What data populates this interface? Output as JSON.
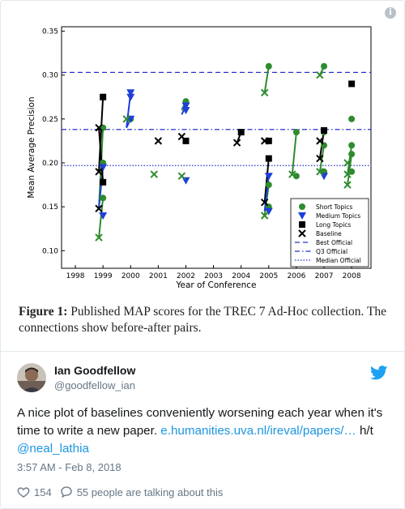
{
  "figure": {
    "caption_label": "Figure 1:",
    "caption_text": " Published MAP scores for the TREC 7 Ad-Hoc collection. The connections show before-after pairs."
  },
  "chart_data": {
    "type": "scatter",
    "xlabel": "Year of Conference",
    "ylabel": "Mean Average Precision",
    "xlim": [
      1997.5,
      2008.7
    ],
    "ylim": [
      0.08,
      0.355
    ],
    "x_ticks": [
      "1998",
      "1999",
      "2000",
      "2001",
      "2002",
      "2003",
      "2004",
      "2005",
      "2006",
      "2007",
      "2008"
    ],
    "y_ticks": [
      "0.10",
      "0.15",
      "0.20",
      "0.25",
      "0.30",
      "0.35"
    ],
    "reference_lines": [
      {
        "name": "Best Official",
        "value": 0.303,
        "style": "dashed"
      },
      {
        "name": "Q3 Official",
        "value": 0.238,
        "style": "dashdot"
      },
      {
        "name": "Median Official",
        "value": 0.197,
        "style": "dotted"
      }
    ],
    "series": [
      {
        "name": "Short Topics",
        "color": "#2e8b2e",
        "marker": "circle",
        "points": [
          [
            1999,
            0.16
          ],
          [
            1999,
            0.2
          ],
          [
            1999,
            0.24
          ],
          [
            2000,
            0.25
          ],
          [
            2002,
            0.27
          ],
          [
            2005,
            0.15
          ],
          [
            2005,
            0.175
          ],
          [
            2005,
            0.31
          ],
          [
            2006,
            0.185
          ],
          [
            2006,
            0.235
          ],
          [
            2007,
            0.31
          ],
          [
            2007,
            0.235
          ],
          [
            2007,
            0.22
          ],
          [
            2007,
            0.19
          ],
          [
            2008,
            0.25
          ],
          [
            2008,
            0.22
          ],
          [
            2008,
            0.21
          ],
          [
            2008,
            0.19
          ]
        ]
      },
      {
        "name": "Medium Topics",
        "color": "#1f3fd8",
        "marker": "triangle-down",
        "points": [
          [
            1999,
            0.14
          ],
          [
            1999,
            0.195
          ],
          [
            2000,
            0.275
          ],
          [
            2000,
            0.28
          ],
          [
            2000,
            0.25
          ],
          [
            2002,
            0.26
          ],
          [
            2002,
            0.265
          ],
          [
            2002,
            0.18
          ],
          [
            2005,
            0.145
          ],
          [
            2005,
            0.185
          ],
          [
            2007,
            0.185
          ]
        ]
      },
      {
        "name": "Long Topics",
        "color": "#000000",
        "marker": "square",
        "points": [
          [
            1999,
            0.275
          ],
          [
            1999,
            0.178
          ],
          [
            2002,
            0.225
          ],
          [
            2004,
            0.235
          ],
          [
            2005,
            0.225
          ],
          [
            2005,
            0.205
          ],
          [
            2007,
            0.237
          ],
          [
            2008,
            0.29
          ]
        ]
      },
      {
        "name": "Baseline",
        "color": "#000000",
        "marker": "x",
        "points": [
          [
            1998.85,
            0.24
          ],
          [
            1998.85,
            0.19
          ],
          [
            1998.85,
            0.148
          ],
          [
            2001,
            0.225
          ],
          [
            2001.85,
            0.23
          ],
          [
            2003.85,
            0.223
          ],
          [
            2004.85,
            0.225
          ],
          [
            2004.85,
            0.155
          ],
          [
            2006.85,
            0.225
          ],
          [
            2006.85,
            0.205
          ]
        ]
      },
      {
        "name": "Green crosses",
        "color": "#2e8b2e",
        "marker": "x",
        "points": [
          [
            1998.85,
            0.115
          ],
          [
            1999.85,
            0.25
          ],
          [
            2000.85,
            0.187
          ],
          [
            2001.85,
            0.185
          ],
          [
            2004.85,
            0.28
          ],
          [
            2004.85,
            0.14
          ],
          [
            2005.85,
            0.187
          ],
          [
            2006.85,
            0.3
          ],
          [
            2006.85,
            0.19
          ],
          [
            2007.85,
            0.2
          ],
          [
            2007.85,
            0.187
          ],
          [
            2007.85,
            0.175
          ]
        ]
      }
    ],
    "connections": [
      {
        "from": [
          1998.85,
          0.115
        ],
        "to": [
          1999,
          0.16
        ],
        "color": "#2e8b2e"
      },
      {
        "from": [
          1998.85,
          0.148
        ],
        "to": [
          1999,
          0.24
        ],
        "color": "#2e8b2e"
      },
      {
        "from": [
          1998.85,
          0.19
        ],
        "to": [
          1999,
          0.275
        ],
        "color": "#000000"
      },
      {
        "from": [
          1998.85,
          0.148
        ],
        "to": [
          1999,
          0.195
        ],
        "color": "#1f3fd8"
      },
      {
        "from": [
          1998.85,
          0.24
        ],
        "to": [
          1999,
          0.178
        ],
        "color": "#000000"
      },
      {
        "from": [
          1999.85,
          0.24
        ],
        "to": [
          2000,
          0.28
        ],
        "color": "#1f3fd8"
      },
      {
        "from": [
          1999.85,
          0.24
        ],
        "to": [
          2000,
          0.25
        ],
        "color": "#1f3fd8"
      },
      {
        "from": [
          1999.85,
          0.25
        ],
        "to": [
          2000,
          0.25
        ],
        "color": "#2e8b2e"
      },
      {
        "from": [
          2001.85,
          0.255
        ],
        "to": [
          2002,
          0.265
        ],
        "color": "#1f3fd8"
      },
      {
        "from": [
          2001.85,
          0.26
        ],
        "to": [
          2002,
          0.27
        ],
        "color": "#2e8b2e"
      },
      {
        "from": [
          2001.85,
          0.185
        ],
        "to": [
          2002,
          0.18
        ],
        "color": "#1f3fd8"
      },
      {
        "from": [
          2001.85,
          0.23
        ],
        "to": [
          2002,
          0.225
        ],
        "color": "#000000"
      },
      {
        "from": [
          2003.85,
          0.223
        ],
        "to": [
          2004,
          0.235
        ],
        "color": "#000000"
      },
      {
        "from": [
          2004.85,
          0.28
        ],
        "to": [
          2005,
          0.31
        ],
        "color": "#2e8b2e"
      },
      {
        "from": [
          2004.85,
          0.14
        ],
        "to": [
          2005,
          0.175
        ],
        "color": "#2e8b2e"
      },
      {
        "from": [
          2004.85,
          0.155
        ],
        "to": [
          2005,
          0.205
        ],
        "color": "#000000"
      },
      {
        "from": [
          2004.85,
          0.145
        ],
        "to": [
          2005,
          0.185
        ],
        "color": "#1f3fd8"
      },
      {
        "from": [
          2005.85,
          0.187
        ],
        "to": [
          2006,
          0.235
        ],
        "color": "#2e8b2e"
      },
      {
        "from": [
          2006.85,
          0.3
        ],
        "to": [
          2007,
          0.31
        ],
        "color": "#2e8b2e"
      },
      {
        "from": [
          2006.85,
          0.205
        ],
        "to": [
          2007,
          0.237
        ],
        "color": "#000000"
      },
      {
        "from": [
          2006.85,
          0.19
        ],
        "to": [
          2007,
          0.22
        ],
        "color": "#2e8b2e"
      },
      {
        "from": [
          2007.85,
          0.175
        ],
        "to": [
          2008,
          0.21
        ],
        "color": "#2e8b2e"
      },
      {
        "from": [
          2007.85,
          0.187
        ],
        "to": [
          2008,
          0.22
        ],
        "color": "#2e8b2e"
      }
    ],
    "legend": {
      "placement": "bottom-right",
      "entries": [
        "Short Topics",
        "Medium Topics",
        "Long Topics",
        "Baseline",
        "Best Official",
        "Q3 Official",
        "Median Official"
      ]
    }
  },
  "tweet": {
    "author_name": "Ian Goodfellow",
    "handle": "@goodfellow_ian",
    "text_before_link": "A nice plot of baselines conveniently worsening each year when it's time to write a new paper. ",
    "link_text": "e.humanities.uva.nl/ireval/papers/…",
    "text_mid": " h/t ",
    "mention": "@neal_lathia",
    "timestamp": "3:57 AM - Feb 8, 2018",
    "like_count": "154",
    "reply_text": "55 people are talking about this"
  },
  "colors": {
    "accent": "#1b95e0",
    "muted": "#657786",
    "text": "#14171a"
  },
  "icons": {
    "info": "info-icon",
    "brand": "twitter-bird-icon",
    "like": "heart-icon",
    "reply": "comment-icon"
  }
}
